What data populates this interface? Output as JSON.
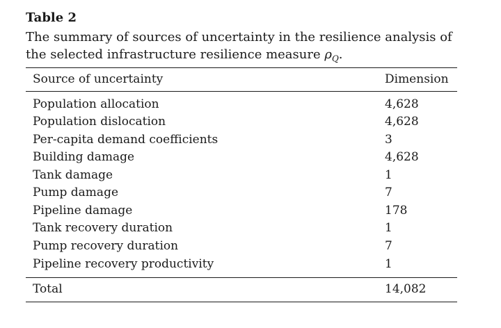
{
  "table": {
    "label": "Table 2",
    "caption_text": "The summary of sources of uncertainty in the resilience analysis of the selected infrastructure resilience measure",
    "caption_symbol": "ρ",
    "caption_subscript": "Q",
    "caption_end": ".",
    "header": {
      "source": "Source of uncertainty",
      "dimension": "Dimension"
    },
    "rows": [
      {
        "source": "Population allocation",
        "dimension": "4,628"
      },
      {
        "source": "Population dislocation",
        "dimension": "4,628"
      },
      {
        "source": "Per-capita demand coefficients",
        "dimension": "3"
      },
      {
        "source": "Building damage",
        "dimension": "4,628"
      },
      {
        "source": "Tank damage",
        "dimension": "1"
      },
      {
        "source": "Pump damage",
        "dimension": "7"
      },
      {
        "source": "Pipeline damage",
        "dimension": "178"
      },
      {
        "source": "Tank recovery duration",
        "dimension": "1"
      },
      {
        "source": "Pump recovery duration",
        "dimension": "7"
      },
      {
        "source": "Pipeline recovery productivity",
        "dimension": "1"
      }
    ],
    "total": {
      "source": "Total",
      "dimension": "14,082"
    }
  }
}
